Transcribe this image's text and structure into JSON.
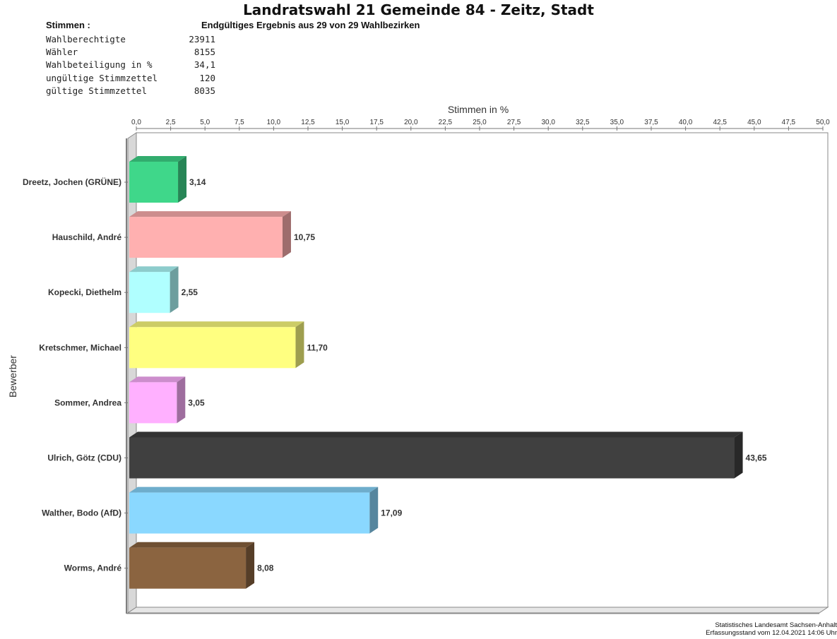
{
  "header": {
    "title": "Landratswahl 21 Gemeinde 84 - Zeitz, Stadt",
    "stimmen_label": "Stimmen   :",
    "ergebnis": "Endgültiges Ergebnis aus 29 von 29 Wahlbezirken"
  },
  "stats": [
    {
      "label": "Wahlberechtigte",
      "value": "23911"
    },
    {
      "label": "Wähler",
      "value": "8155"
    },
    {
      "label": "Wahlbeteiligung in %",
      "value": "34,1"
    },
    {
      "label": "ungültige Stimmzettel",
      "value": "120"
    },
    {
      "label": "gültige Stimmzettel",
      "value": "8035"
    }
  ],
  "chart_data": {
    "type": "bar",
    "orientation": "horizontal",
    "xlabel": "Stimmen in %",
    "ylabel": "Bewerber",
    "xlim": [
      0,
      50
    ],
    "xticks": [
      "0,0",
      "2,5",
      "5,0",
      "7,5",
      "10,0",
      "12,5",
      "15,0",
      "17,5",
      "20,0",
      "22,5",
      "25,0",
      "27,5",
      "30,0",
      "32,5",
      "35,0",
      "37,5",
      "40,0",
      "42,5",
      "45,0",
      "47,5",
      "50,0"
    ],
    "categories": [
      "Dreetz, Jochen (GRÜNE)",
      "Hauschild, André",
      "Kopecki, Diethelm",
      "Kretschmer, Michael",
      "Sommer, Andrea",
      "Ulrich, Götz (CDU)",
      "Walther, Bodo (AfD)",
      "Worms, André"
    ],
    "values": [
      3.14,
      10.75,
      2.55,
      11.7,
      3.05,
      43.65,
      17.09,
      8.08
    ],
    "value_labels": [
      "3,14",
      "10,75",
      "2,55",
      "11,70",
      "3,05",
      "43,65",
      "17,09",
      "8,08"
    ],
    "colors": [
      "#3fd78a",
      "#ffb0b0",
      "#b0ffff",
      "#ffff80",
      "#ffb0ff",
      "#404040",
      "#8ad8ff",
      "#8b6440"
    ],
    "axis_position": "top",
    "grid": false,
    "legend": "none"
  },
  "footer": {
    "line1": "Statistisches Landesamt Sachsen-Anhalt",
    "line2": "Erfassungsstand vom 12.04.2021 14:06 Uhr"
  }
}
